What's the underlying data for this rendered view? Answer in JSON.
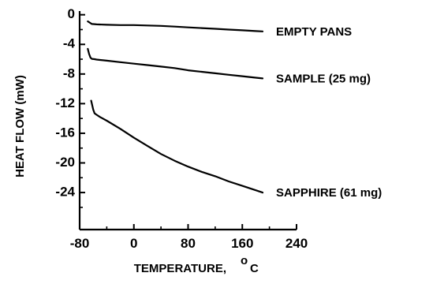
{
  "chart_data": {
    "type": "line",
    "xlabel": "TEMPERATURE,",
    "xlabel_unit": "C",
    "xlabel_degree": "o",
    "ylabel": "HEAT FLOW (mW)",
    "xlim": [
      -80,
      240
    ],
    "ylim": [
      -29,
      0.5
    ],
    "x_ticks": [
      -80,
      0,
      80,
      160,
      240
    ],
    "x_tick_labels": [
      "-80",
      "0",
      "80",
      "160",
      "240"
    ],
    "y_ticks": [
      0,
      -4,
      -8,
      -12,
      -16,
      -20,
      -24
    ],
    "y_tick_labels": [
      "0",
      "-4",
      "-8",
      "-12",
      "-16",
      "-20",
      "-24"
    ],
    "series": [
      {
        "name": "EMPTY PANS",
        "x": [
          -68,
          -62,
          -55,
          -40,
          -20,
          0,
          20,
          40,
          60,
          80,
          100,
          120,
          140,
          160,
          180,
          190
        ],
        "y": [
          -0.9,
          -1.25,
          -1.3,
          -1.35,
          -1.4,
          -1.4,
          -1.45,
          -1.5,
          -1.6,
          -1.7,
          -1.8,
          -1.9,
          -2.0,
          -2.1,
          -2.2,
          -2.25
        ]
      },
      {
        "name": "SAMPLE (25 mg)",
        "x": [
          -68,
          -66,
          -64,
          -62,
          -58,
          -55,
          -50,
          -40,
          -20,
          0,
          20,
          40,
          60,
          80,
          100,
          120,
          140,
          160,
          180,
          190
        ],
        "y": [
          -4.6,
          -5.3,
          -5.8,
          -5.95,
          -6.0,
          -6.05,
          -6.1,
          -6.2,
          -6.4,
          -6.6,
          -6.8,
          -7.0,
          -7.2,
          -7.5,
          -7.7,
          -7.9,
          -8.1,
          -8.3,
          -8.5,
          -8.6
        ]
      },
      {
        "name": "SAPPHIRE (61 mg)",
        "x": [
          -63,
          -60,
          -58,
          -55,
          -50,
          -40,
          -20,
          0,
          20,
          40,
          60,
          80,
          100,
          120,
          140,
          160,
          180,
          190
        ],
        "y": [
          -11.6,
          -12.8,
          -13.3,
          -13.5,
          -13.8,
          -14.3,
          -15.4,
          -16.6,
          -17.7,
          -18.8,
          -19.7,
          -20.5,
          -21.2,
          -21.8,
          -22.5,
          -23.1,
          -23.7,
          -24.0
        ]
      }
    ]
  }
}
